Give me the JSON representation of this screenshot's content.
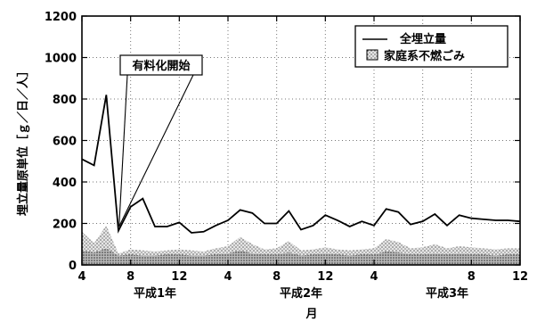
{
  "chart_data": {
    "type": "line",
    "title": "",
    "xlabel": "月",
    "ylabel": "埋立量原単位［ｇ／日／人］",
    "ylim": [
      0,
      1200
    ],
    "yticks": [
      "0",
      "200",
      "400",
      "600",
      "800",
      "1000",
      "1200"
    ],
    "xticks": [
      "4",
      "8",
      "12",
      "4",
      "8",
      "12",
      "4",
      "8",
      "12"
    ],
    "periods": [
      "平成1年",
      "平成2年",
      "平成3年"
    ],
    "x": [
      1,
      2,
      3,
      4,
      5,
      6,
      7,
      8,
      9,
      10,
      11,
      12,
      13,
      14,
      15,
      16,
      17,
      18,
      19,
      20,
      21,
      22,
      23,
      24,
      25,
      26,
      27,
      28,
      29,
      30,
      31,
      32,
      33,
      34,
      35,
      36,
      37
    ],
    "series": [
      {
        "name": "全埋立量",
        "style": "line",
        "values": [
          510,
          480,
          820,
          165,
          280,
          320,
          185,
          185,
          205,
          155,
          160,
          190,
          215,
          265,
          250,
          200,
          200,
          260,
          170,
          190,
          240,
          215,
          185,
          210,
          190,
          270,
          255,
          195,
          210,
          245,
          190,
          240,
          225,
          220,
          215,
          215,
          210
        ]
      },
      {
        "name": "家庭系不燃ごみ",
        "style": "stippled-area",
        "values": [
          160,
          105,
          190,
          55,
          75,
          70,
          65,
          70,
          75,
          70,
          65,
          80,
          90,
          135,
          100,
          75,
          80,
          115,
          70,
          75,
          85,
          75,
          70,
          75,
          80,
          125,
          110,
          80,
          85,
          100,
          80,
          90,
          85,
          80,
          75,
          80,
          80
        ]
      },
      {
        "name": "",
        "style": "base-band",
        "values": [
          70,
          60,
          80,
          45,
          50,
          45,
          45,
          50,
          50,
          45,
          45,
          50,
          55,
          70,
          55,
          50,
          50,
          60,
          45,
          50,
          55,
          50,
          45,
          50,
          50,
          65,
          60,
          50,
          50,
          55,
          50,
          55,
          50,
          50,
          45,
          50,
          50
        ]
      }
    ],
    "grid": true,
    "legend_position": "top-right",
    "annotation": {
      "text": "有料化開始",
      "target_x": 5
    }
  }
}
